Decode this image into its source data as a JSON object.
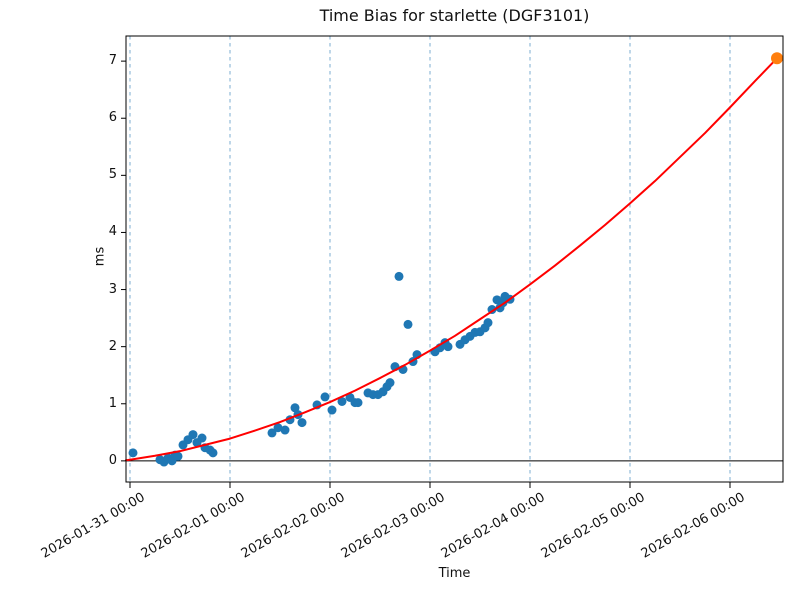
{
  "figure": {
    "title": "Time Bias for starlette (DGF3101)",
    "xlabel": "Time",
    "ylabel": "ms"
  },
  "chart_data": {
    "type": "scatter",
    "title": "Time Bias for starlette (DGF3101)",
    "xlabel": "Time",
    "ylabel": "ms",
    "x_unit": "days since 2026-01-31 00:00",
    "xlim": [
      -0.04,
      6.53
    ],
    "ylim": [
      -0.37,
      7.44
    ],
    "x_tick_days": [
      0,
      1,
      2,
      3,
      4,
      5,
      6
    ],
    "x_tick_labels": [
      "2026-01-31 00:00",
      "2026-02-01 00:00",
      "2026-02-02 00:00",
      "2026-02-03 00:00",
      "2026-02-04 00:00",
      "2026-02-05 00:00",
      "2026-02-06 00:00"
    ],
    "y_ticks": [
      0,
      1,
      2,
      3,
      4,
      5,
      6,
      7
    ],
    "grid": "vertical dashed lines at day ticks",
    "zero_line": true,
    "colors": {
      "observations": "#1f77b4",
      "fit_line": "#ff0000",
      "predicted": "#ff7f0e",
      "gridline": "#6ea6cd",
      "axis": "#000000"
    },
    "series": [
      {
        "name": "observations",
        "kind": "scatter",
        "color": "#1f77b4",
        "marker_radius": 4.5,
        "points": [
          [
            0.03,
            0.14
          ],
          [
            0.3,
            0.02
          ],
          [
            0.34,
            -0.02
          ],
          [
            0.38,
            0.05
          ],
          [
            0.42,
            0.0
          ],
          [
            0.45,
            0.1
          ],
          [
            0.48,
            0.08
          ],
          [
            0.53,
            0.28
          ],
          [
            0.58,
            0.37
          ],
          [
            0.63,
            0.46
          ],
          [
            0.67,
            0.32
          ],
          [
            0.72,
            0.4
          ],
          [
            0.75,
            0.23
          ],
          [
            0.8,
            0.19
          ],
          [
            0.83,
            0.14
          ],
          [
            1.42,
            0.49
          ],
          [
            1.48,
            0.58
          ],
          [
            1.55,
            0.54
          ],
          [
            1.6,
            0.72
          ],
          [
            1.65,
            0.93
          ],
          [
            1.68,
            0.81
          ],
          [
            1.72,
            0.67
          ],
          [
            1.87,
            0.98
          ],
          [
            1.95,
            1.12
          ],
          [
            2.02,
            0.89
          ],
          [
            2.12,
            1.04
          ],
          [
            2.2,
            1.11
          ],
          [
            2.25,
            1.02
          ],
          [
            2.28,
            1.02
          ],
          [
            2.38,
            1.19
          ],
          [
            2.43,
            1.16
          ],
          [
            2.48,
            1.16
          ],
          [
            2.53,
            1.21
          ],
          [
            2.57,
            1.3
          ],
          [
            2.6,
            1.37
          ],
          [
            2.65,
            1.65
          ],
          [
            2.69,
            3.23
          ],
          [
            2.73,
            1.6
          ],
          [
            2.78,
            2.39
          ],
          [
            2.83,
            1.74
          ],
          [
            2.87,
            1.86
          ],
          [
            3.05,
            1.91
          ],
          [
            3.1,
            1.98
          ],
          [
            3.15,
            2.07
          ],
          [
            3.18,
            2.0
          ],
          [
            3.3,
            2.04
          ],
          [
            3.35,
            2.12
          ],
          [
            3.4,
            2.18
          ],
          [
            3.45,
            2.25
          ],
          [
            3.5,
            2.26
          ],
          [
            3.55,
            2.33
          ],
          [
            3.58,
            2.42
          ],
          [
            3.62,
            2.65
          ],
          [
            3.67,
            2.82
          ],
          [
            3.7,
            2.68
          ],
          [
            3.73,
            2.77
          ],
          [
            3.75,
            2.88
          ],
          [
            3.8,
            2.83
          ]
        ]
      },
      {
        "name": "fit-curve",
        "kind": "line",
        "color": "#ff0000",
        "stroke_width": 2,
        "points": [
          [
            -0.04,
            0.01
          ],
          [
            0.0,
            0.02
          ],
          [
            0.25,
            0.09
          ],
          [
            0.5,
            0.17
          ],
          [
            0.75,
            0.28
          ],
          [
            1.0,
            0.39
          ],
          [
            1.25,
            0.53
          ],
          [
            1.5,
            0.68
          ],
          [
            1.75,
            0.85
          ],
          [
            2.0,
            1.03
          ],
          [
            2.25,
            1.23
          ],
          [
            2.5,
            1.45
          ],
          [
            2.75,
            1.68
          ],
          [
            3.0,
            1.93
          ],
          [
            3.25,
            2.19
          ],
          [
            3.5,
            2.48
          ],
          [
            3.75,
            2.77
          ],
          [
            4.0,
            3.09
          ],
          [
            4.25,
            3.42
          ],
          [
            4.5,
            3.77
          ],
          [
            4.75,
            4.13
          ],
          [
            5.0,
            4.51
          ],
          [
            5.25,
            4.9
          ],
          [
            5.5,
            5.32
          ],
          [
            5.75,
            5.74
          ],
          [
            6.0,
            6.19
          ],
          [
            6.25,
            6.65
          ],
          [
            6.47,
            7.05
          ]
        ]
      },
      {
        "name": "predicted-point",
        "kind": "scatter",
        "color": "#ff7f0e",
        "marker_radius": 6,
        "points": [
          [
            6.47,
            7.05
          ]
        ]
      }
    ]
  }
}
